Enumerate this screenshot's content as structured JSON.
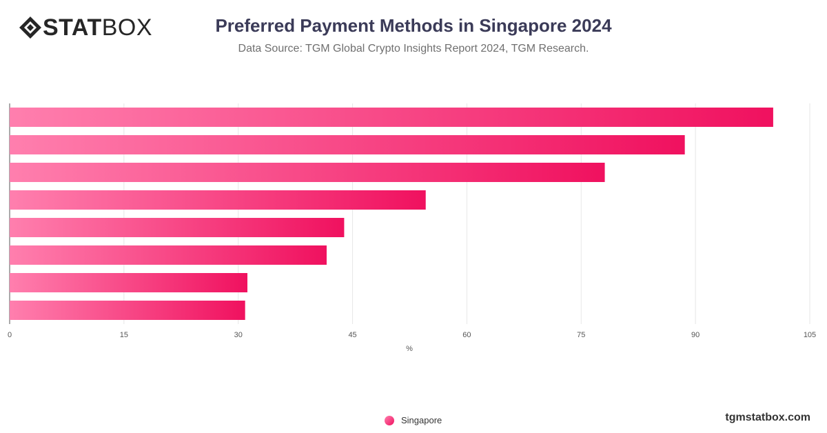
{
  "brand": {
    "logo_bold": "STAT",
    "logo_light": "BOX",
    "site": "tgmstatbox.com"
  },
  "header": {
    "title": "Preferred Payment Methods in Singapore 2024",
    "subtitle": "Data Source: TGM Global Crypto Insights Report 2024, TGM Research."
  },
  "colors": {
    "bar_start": "#ff7fae",
    "bar_end": "#f0115f",
    "grid": "#e6e6e6",
    "axis": "#555555"
  },
  "icons": {
    "logo": "diamond-logo-icon",
    "legend": "circle-marker-icon"
  },
  "chart_data": {
    "type": "bar",
    "orientation": "horizontal",
    "categories": [
      "",
      "",
      "",
      "",
      "",
      "",
      "",
      ""
    ],
    "series": [
      {
        "name": "Singapore",
        "values": [
          100.2,
          88.6,
          78.1,
          54.6,
          43.9,
          41.6,
          31.2,
          30.9
        ]
      }
    ],
    "xlabel": "%",
    "xlim": [
      0,
      105
    ],
    "xticks": [
      "0",
      "15",
      "30",
      "45",
      "60",
      "75",
      "90",
      "105"
    ],
    "grid": true,
    "legend_position": "bottom-center"
  }
}
